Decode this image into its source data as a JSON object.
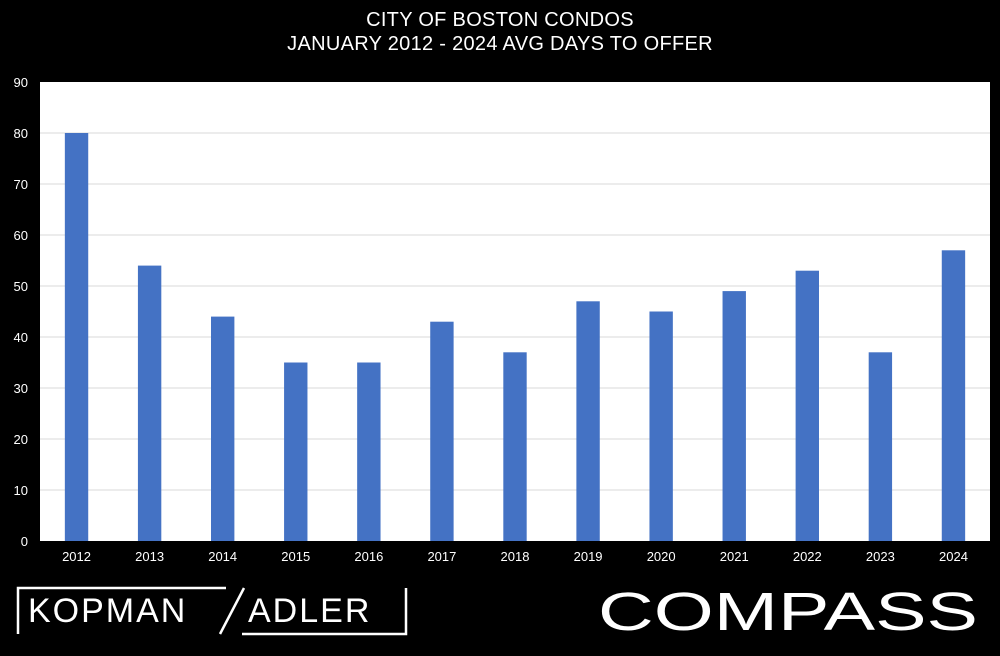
{
  "chart_data": {
    "type": "bar",
    "title": "CITY OF BOSTON CONDOS",
    "subtitle": "JANUARY 2012 - 2024 AVG DAYS TO OFFER",
    "xlabel": "",
    "ylabel": "",
    "ylim": [
      0,
      90
    ],
    "yticks": [
      0,
      10,
      20,
      30,
      40,
      50,
      60,
      70,
      80,
      90
    ],
    "categories": [
      "2012",
      "2013",
      "2014",
      "2015",
      "2016",
      "2017",
      "2018",
      "2019",
      "2020",
      "2021",
      "2022",
      "2023",
      "2024"
    ],
    "values": [
      80,
      54,
      44,
      35,
      35,
      43,
      37,
      47,
      45,
      49,
      53,
      37,
      57
    ],
    "bar_color": "#4472C4",
    "grid": true,
    "legend": "none"
  },
  "branding": {
    "left_logo_part1": "KOPMAN",
    "left_logo_part2": "ADLER",
    "right_logo": "COMPASS"
  }
}
